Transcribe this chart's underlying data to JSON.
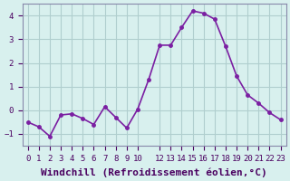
{
  "x": [
    0,
    1,
    2,
    3,
    4,
    5,
    6,
    7,
    8,
    9,
    10,
    11,
    12,
    13,
    14,
    15,
    16,
    17,
    18,
    19,
    20,
    21,
    22,
    23
  ],
  "y": [
    -0.5,
    -0.7,
    -1.1,
    -0.2,
    -0.15,
    -0.35,
    -0.6,
    0.15,
    -0.3,
    -0.75,
    0.05,
    1.3,
    2.75,
    2.75,
    3.5,
    4.2,
    4.1,
    3.85,
    2.7,
    1.45,
    0.65,
    0.3,
    -0.1,
    -0.4
  ],
  "line_color": "#7b1fa2",
  "marker": ".",
  "markersize": 5,
  "linewidth": 1.2,
  "background_color": "#d8f0ee",
  "grid_color": "#b0cece",
  "xlabel": "Windchill (Refroidissement éolien,°C)",
  "xlabel_fontsize": 8,
  "tick_fontsize": 6.5,
  "tick_color": "#4a0060",
  "ylim": [
    -1.5,
    4.5
  ],
  "yticks": [
    -1,
    0,
    1,
    2,
    3,
    4
  ],
  "xtick_labels": [
    "0",
    "1",
    "2",
    "3",
    "4",
    "5",
    "6",
    "7",
    "8",
    "9",
    "10",
    "12",
    "13",
    "14",
    "15",
    "16",
    "17",
    "18",
    "19",
    "20",
    "21",
    "22",
    "23"
  ],
  "xtick_positions": [
    0,
    1,
    2,
    3,
    4,
    5,
    6,
    7,
    8,
    9,
    10,
    12,
    13,
    14,
    15,
    16,
    17,
    18,
    19,
    20,
    21,
    22,
    23
  ]
}
